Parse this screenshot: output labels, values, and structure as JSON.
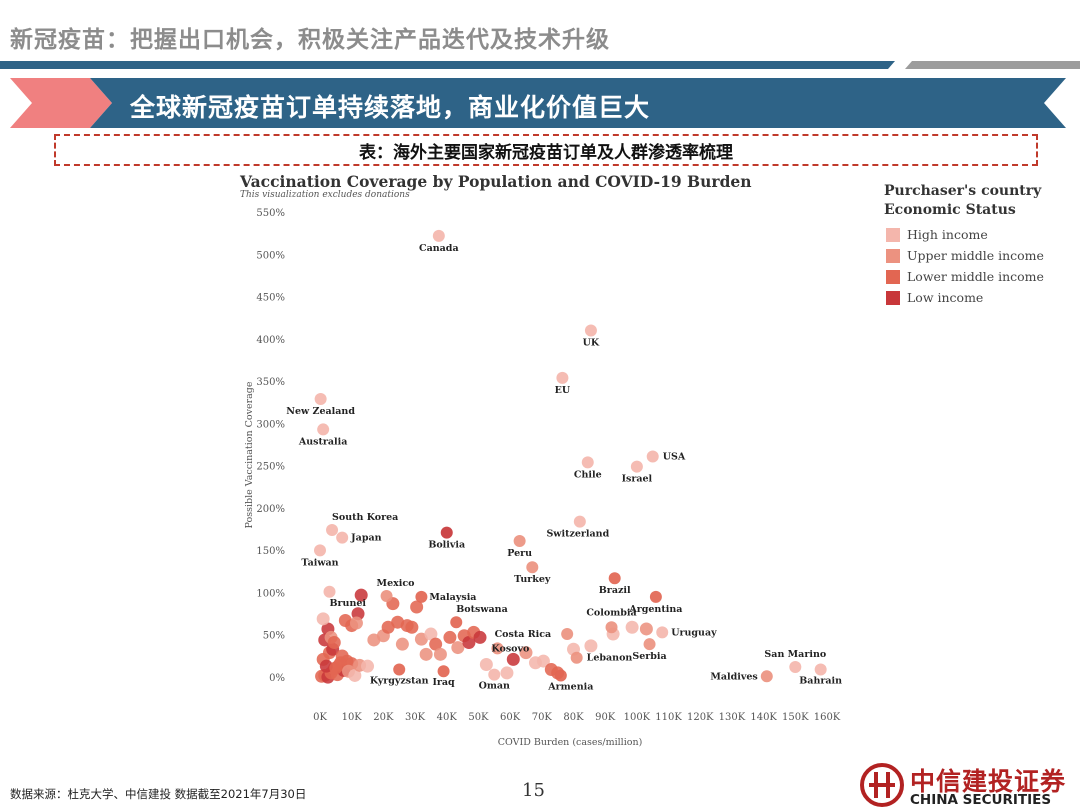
{
  "header": {
    "title": "新冠疫苗：把握出口机会，积极关注产品迭代及技术升级",
    "banner": "全球新冠疫苗订单持续落地，商业化价值巨大",
    "table_caption": "表：海外主要国家新冠疫苗订单及人群渗透率梳理"
  },
  "colors": {
    "title_gray": "#8c8c8c",
    "bar_blue": "#2e6387",
    "bar_gray": "#9c9c9c",
    "banner_blue": "#2e6387",
    "banner_pink": "#f08080",
    "brand_red": "#b22222"
  },
  "chart_data": {
    "type": "scatter",
    "title": "Vaccination Coverage by Population and COVID-19 Burden",
    "subtitle": "This visualization excludes donations",
    "xlabel": "COVID Burden (cases/million)",
    "ylabel": "Possible Vaccination Coverage",
    "xlim": [
      0,
      160000
    ],
    "ylim": [
      0,
      550
    ],
    "x_ticks": [
      "0K",
      "10K",
      "20K",
      "30K",
      "40K",
      "50K",
      "60K",
      "70K",
      "80K",
      "90K",
      "100K",
      "110K",
      "120K",
      "130K",
      "140K",
      "150K",
      "160K"
    ],
    "y_ticks": [
      "0%",
      "50%",
      "100%",
      "150%",
      "200%",
      "250%",
      "300%",
      "350%",
      "400%",
      "450%",
      "500%",
      "550%"
    ],
    "grid": false,
    "legend": {
      "title_line1": "Purchaser's country",
      "title_line2": "Economic  Status",
      "placement": "right",
      "items": [
        {
          "label": "High income",
          "color": "#f4b6ac"
        },
        {
          "label": "Upper middle income",
          "color": "#ec9280"
        },
        {
          "label": "Lower middle income",
          "color": "#e26652"
        },
        {
          "label": "Low income",
          "color": "#c8373a"
        }
      ]
    },
    "labeled_points": [
      {
        "name": "Canada",
        "x": 37500,
        "y": 523,
        "group": 0
      },
      {
        "name": "UK",
        "x": 85500,
        "y": 411,
        "group": 0
      },
      {
        "name": "EU",
        "x": 76500,
        "y": 355,
        "group": 0
      },
      {
        "name": "New Zealand",
        "x": 200,
        "y": 330,
        "group": 0
      },
      {
        "name": "Australia",
        "x": 1000,
        "y": 294,
        "group": 0
      },
      {
        "name": "USA",
        "x": 105000,
        "y": 262,
        "group": 0
      },
      {
        "name": "Chile",
        "x": 84500,
        "y": 255,
        "group": 0
      },
      {
        "name": "Israel",
        "x": 100000,
        "y": 250,
        "group": 0
      },
      {
        "name": "Switzerland",
        "x": 82000,
        "y": 185,
        "group": 0
      },
      {
        "name": "South Korea",
        "x": 3800,
        "y": 175,
        "group": 0
      },
      {
        "name": "Japan",
        "x": 7000,
        "y": 166,
        "group": 0
      },
      {
        "name": "Bolivia",
        "x": 40000,
        "y": 172,
        "group": 3
      },
      {
        "name": "Peru",
        "x": 63000,
        "y": 162,
        "group": 1
      },
      {
        "name": "Taiwan",
        "x": 0,
        "y": 151,
        "group": 0
      },
      {
        "name": "Turkey",
        "x": 67000,
        "y": 131,
        "group": 1
      },
      {
        "name": "Brazil",
        "x": 93000,
        "y": 118,
        "group": 2
      },
      {
        "name": "Mexico",
        "x": 21000,
        "y": 97,
        "group": 1
      },
      {
        "name": "Malaysia",
        "x": 32000,
        "y": 96,
        "group": 2
      },
      {
        "name": "Argentina",
        "x": 106000,
        "y": 96,
        "group": 2
      },
      {
        "name": "Brunei",
        "x": 3000,
        "y": 102,
        "group": 0
      },
      {
        "name": "Botswana",
        "x": 43000,
        "y": 66,
        "group": 2
      },
      {
        "name": "Colombia",
        "x": 92000,
        "y": 60,
        "group": 1
      },
      {
        "name": "Costa Rica",
        "x": 78000,
        "y": 52,
        "group": 1
      },
      {
        "name": "Uruguay",
        "x": 108000,
        "y": 54,
        "group": 0
      },
      {
        "name": "Kosovo",
        "x": 56000,
        "y": 35,
        "group": 1
      },
      {
        "name": "Lebanon",
        "x": 81000,
        "y": 24,
        "group": 1
      },
      {
        "name": "Serbia",
        "x": 104000,
        "y": 40,
        "group": 1
      },
      {
        "name": "Kyrgyzstan",
        "x": 25000,
        "y": 10,
        "group": 2
      },
      {
        "name": "Iraq",
        "x": 39000,
        "y": 8,
        "group": 2
      },
      {
        "name": "Oman",
        "x": 55000,
        "y": 4,
        "group": 0
      },
      {
        "name": "Armenia",
        "x": 76000,
        "y": 3,
        "group": 2
      },
      {
        "name": "San Marino",
        "x": 150000,
        "y": 13,
        "group": 0
      },
      {
        "name": "Maldives",
        "x": 141000,
        "y": 2,
        "group": 1
      },
      {
        "name": "Bahrain",
        "x": 158000,
        "y": 10,
        "group": 0
      }
    ],
    "unlabeled_points": [
      [
        500,
        2,
        2
      ],
      [
        1500,
        3,
        2
      ],
      [
        2500,
        1,
        3
      ],
      [
        3500,
        6,
        2
      ],
      [
        4500,
        11,
        2
      ],
      [
        5500,
        4,
        2
      ],
      [
        6500,
        18,
        2
      ],
      [
        7500,
        9,
        3
      ],
      [
        8500,
        20,
        2
      ],
      [
        10000,
        17,
        2
      ],
      [
        1000,
        22,
        2
      ],
      [
        2000,
        14,
        3
      ],
      [
        3000,
        30,
        2
      ],
      [
        4000,
        34,
        3
      ],
      [
        5000,
        12,
        2
      ],
      [
        6000,
        15,
        2
      ],
      [
        7000,
        26,
        2
      ],
      [
        9000,
        8,
        1
      ],
      [
        11000,
        3,
        0
      ],
      [
        12500,
        15,
        1
      ],
      [
        1500,
        45,
        3
      ],
      [
        2500,
        58,
        3
      ],
      [
        3500,
        48,
        1
      ],
      [
        4500,
        42,
        2
      ],
      [
        1000,
        70,
        0
      ],
      [
        8000,
        68,
        2
      ],
      [
        10000,
        62,
        2
      ],
      [
        12000,
        76,
        3
      ],
      [
        13000,
        98,
        3
      ],
      [
        11500,
        65,
        1
      ],
      [
        20000,
        50,
        1
      ],
      [
        21500,
        60,
        2
      ],
      [
        23000,
        88,
        2
      ],
      [
        24500,
        66,
        2
      ],
      [
        26000,
        40,
        1
      ],
      [
        27500,
        62,
        2
      ],
      [
        29000,
        60,
        2
      ],
      [
        30500,
        84,
        2
      ],
      [
        32000,
        46,
        1
      ],
      [
        33500,
        28,
        1
      ],
      [
        35000,
        52,
        0
      ],
      [
        36500,
        40,
        2
      ],
      [
        38000,
        28,
        1
      ],
      [
        41000,
        48,
        2
      ],
      [
        43500,
        36,
        1
      ],
      [
        45500,
        50,
        2
      ],
      [
        47000,
        42,
        3
      ],
      [
        48500,
        54,
        2
      ],
      [
        50500,
        48,
        3
      ],
      [
        52500,
        16,
        0
      ],
      [
        59000,
        6,
        0
      ],
      [
        61000,
        22,
        3
      ],
      [
        65000,
        30,
        1
      ],
      [
        68000,
        18,
        0
      ],
      [
        70500,
        20,
        0
      ],
      [
        73000,
        10,
        2
      ],
      [
        75000,
        6,
        2
      ],
      [
        80000,
        34,
        0
      ],
      [
        85500,
        38,
        0
      ],
      [
        92500,
        52,
        0
      ],
      [
        98500,
        60,
        0
      ],
      [
        103000,
        58,
        1
      ],
      [
        15000,
        14,
        0
      ],
      [
        17000,
        45,
        1
      ]
    ]
  },
  "footer": {
    "source": "数据来源：杜克大学、中信建投  数据截至2021年7月30日",
    "page": "15",
    "logo_cn": "中信建投证券",
    "logo_en": "CHINA SECURITIES"
  }
}
